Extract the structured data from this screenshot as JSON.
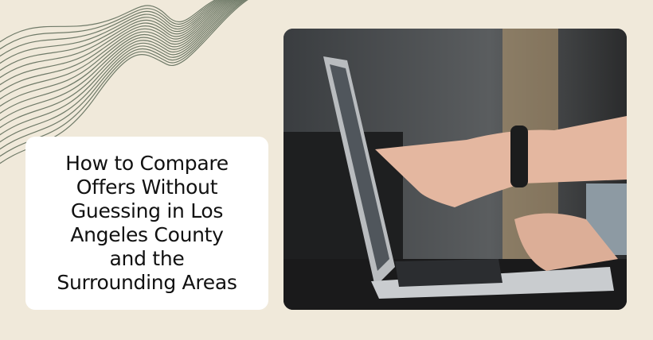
{
  "colors": {
    "background": "#f0e9da",
    "wave_lines": "#6f7a68",
    "card": "#ffffff",
    "title_text": "#111111"
  },
  "title": "How to Compare Offers Without Guessing in Los Angeles County and the Surrounding Areas",
  "title_lines": [
    "How to Compare",
    "Offers Without",
    "Guessing in Los",
    "Angeles County",
    "and the",
    "Surrounding Areas"
  ],
  "photo": {
    "subject": "laptop-with-pointing-hands"
  }
}
